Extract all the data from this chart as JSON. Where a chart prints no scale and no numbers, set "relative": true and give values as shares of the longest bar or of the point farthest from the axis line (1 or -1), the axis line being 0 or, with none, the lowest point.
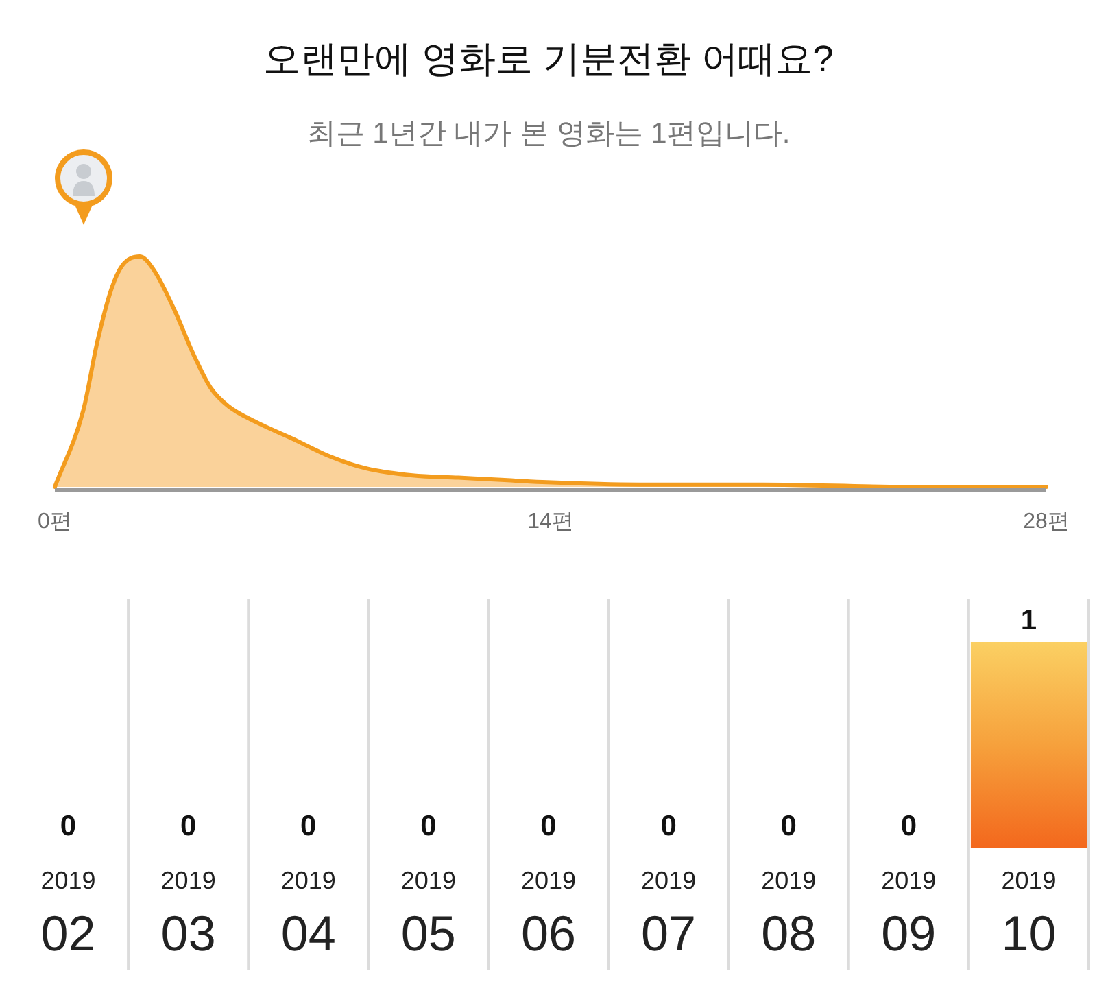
{
  "chart_data": [
    {
      "type": "area",
      "title": "오랜만에 영화로 기분전환 어때요?",
      "subtitle": "최근 1년간 내가 본 영화는 1편입니다.",
      "relative": true,
      "color": "#f39c1e",
      "x": [
        0,
        0.8,
        1.2,
        1.6,
        1.9,
        2.4,
        2.8,
        3.4,
        3.9,
        4.4,
        4.9,
        5.7,
        6.7,
        7.8,
        8.8,
        10.1,
        11.4,
        12.7,
        13.9,
        16.5,
        20,
        24,
        28
      ],
      "values": [
        0,
        0.33,
        0.63,
        0.86,
        0.96,
        1,
        0.94,
        0.76,
        0.58,
        0.43,
        0.35,
        0.28,
        0.21,
        0.13,
        0.08,
        0.05,
        0.04,
        0.03,
        0.02,
        0.01,
        0.01,
        0,
        0
      ],
      "xlim": [
        0,
        28
      ],
      "xticks": [
        {
          "value": 0,
          "label": "0편"
        },
        {
          "value": 14,
          "label": "14편"
        },
        {
          "value": 28,
          "label": "28편"
        }
      ]
    },
    {
      "type": "bar",
      "categories": [
        "2019\n02",
        "2019\n03",
        "2019\n04",
        "2019\n05",
        "2019\n06",
        "2019\n07",
        "2019\n08",
        "2019\n09",
        "2019\n10"
      ],
      "values": [
        0,
        0,
        0,
        0,
        0,
        0,
        0,
        0,
        1
      ],
      "color": "#f6a13c",
      "data_labels": true,
      "grid": "x"
    }
  ]
}
